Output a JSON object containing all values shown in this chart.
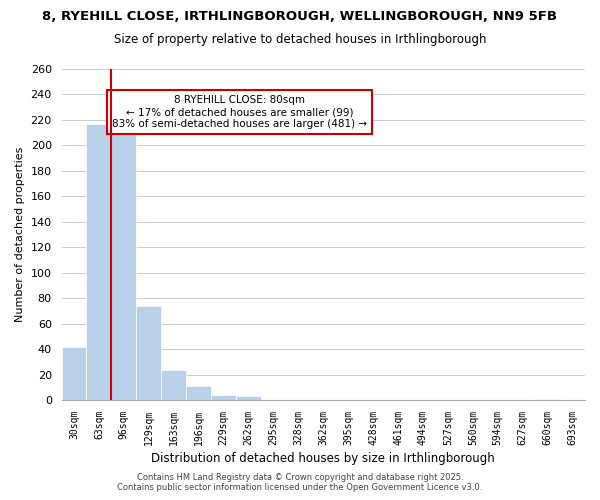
{
  "title": "8, RYEHILL CLOSE, IRTHLINGBOROUGH, WELLINGBOROUGH, NN9 5FB",
  "subtitle": "Size of property relative to detached houses in Irthlingborough",
  "xlabel": "Distribution of detached houses by size in Irthlingborough",
  "ylabel": "Number of detached properties",
  "bar_values": [
    42,
    217,
    211,
    74,
    24,
    11,
    4,
    3,
    0,
    0,
    0,
    0,
    0,
    0,
    0,
    0,
    0,
    0,
    0,
    1,
    0
  ],
  "bin_labels": [
    "30sqm",
    "63sqm",
    "96sqm",
    "129sqm",
    "163sqm",
    "196sqm",
    "229sqm",
    "262sqm",
    "295sqm",
    "328sqm",
    "362sqm",
    "395sqm",
    "428sqm",
    "461sqm",
    "494sqm",
    "527sqm",
    "560sqm",
    "594sqm",
    "627sqm",
    "660sqm",
    "693sqm"
  ],
  "bar_color": "#b8d0e8",
  "vline_x_idx": 1,
  "vline_color": "#cc0000",
  "ylim": [
    0,
    260
  ],
  "yticks": [
    0,
    20,
    40,
    60,
    80,
    100,
    120,
    140,
    160,
    180,
    200,
    220,
    240,
    260
  ],
  "annotation_title": "8 RYEHILL CLOSE: 80sqm",
  "annotation_line1": "← 17% of detached houses are smaller (99)",
  "annotation_line2": "83% of semi-detached houses are larger (481) →",
  "annotation_box_color": "#cc0000",
  "footnote1": "Contains HM Land Registry data © Crown copyright and database right 2025.",
  "footnote2": "Contains public sector information licensed under the Open Government Licence v3.0.",
  "background_color": "#ffffff",
  "grid_color": "#cccccc"
}
